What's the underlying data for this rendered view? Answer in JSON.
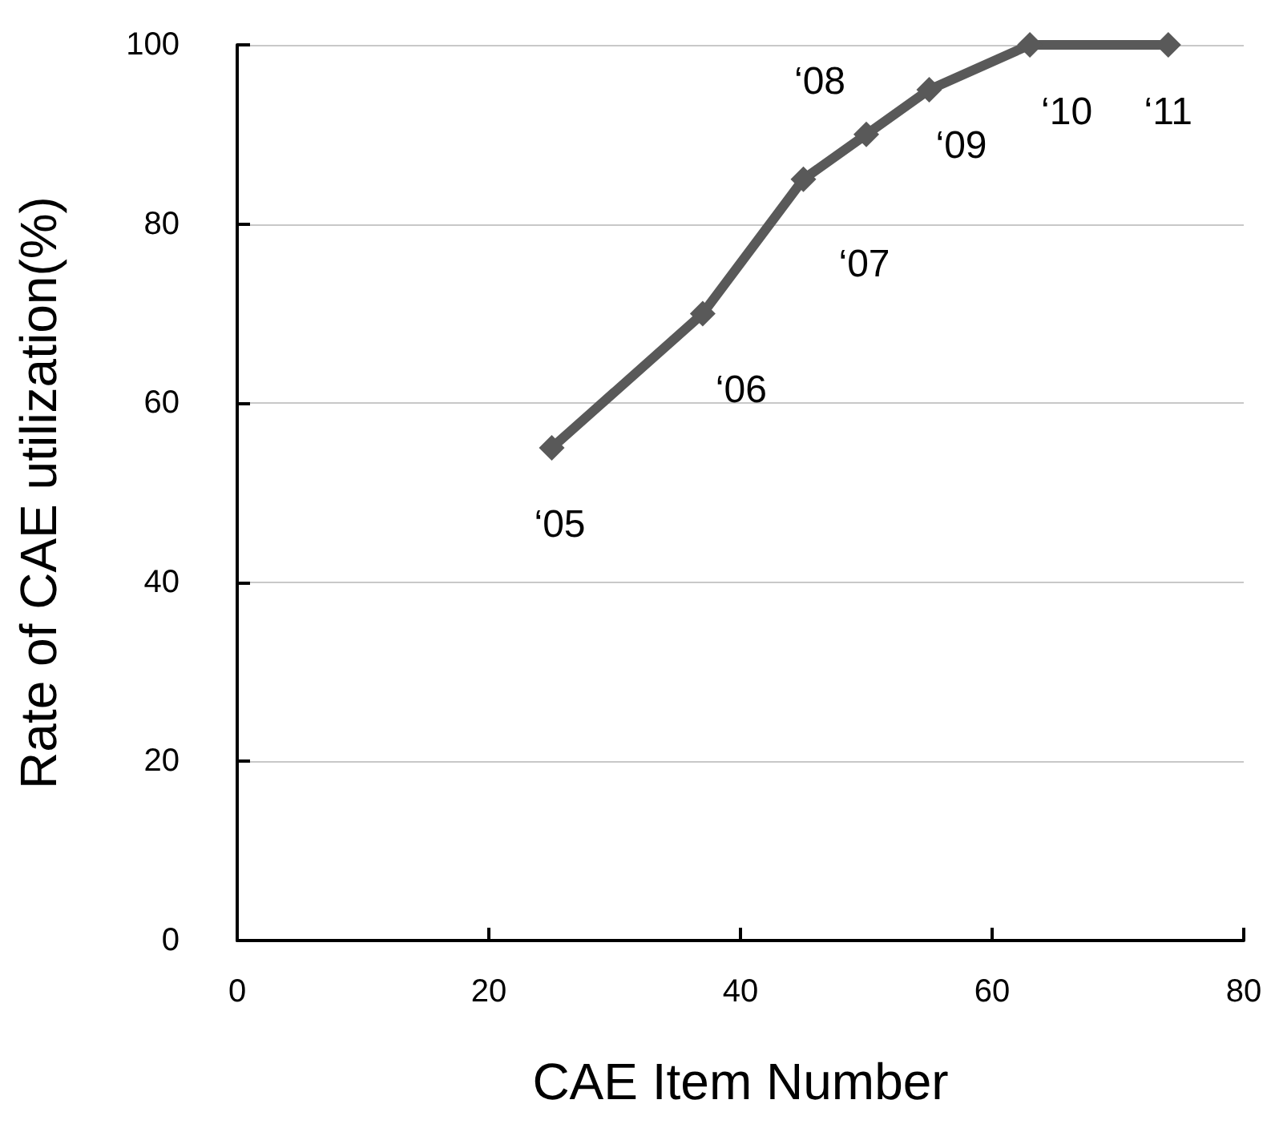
{
  "chart_data": {
    "type": "line",
    "xlabel": "CAE Item Number",
    "ylabel": "Rate of CAE utilization(%)",
    "x": [
      25,
      37,
      45,
      50,
      55,
      63,
      74
    ],
    "series": [
      {
        "color": "#595959",
        "values": [
          55,
          70,
          85,
          90,
          95,
          100,
          100
        ]
      }
    ],
    "xlim": [
      0,
      80
    ],
    "xticks": [
      0,
      20,
      40,
      60,
      80
    ],
    "ylim": [
      0,
      100
    ],
    "yticks": [
      0,
      20,
      40,
      60,
      80,
      100
    ],
    "grid": "y",
    "marker": "diamond",
    "line_style": "solid",
    "annotations": [
      {
        "text": "‘05",
        "x": 25,
        "y": 55
      },
      {
        "text": "‘06",
        "x": 37,
        "y": 70
      },
      {
        "text": "‘07",
        "x": 45,
        "y": 85
      },
      {
        "text": "‘08",
        "x": 50,
        "y": 90
      },
      {
        "text": "‘09",
        "x": 55,
        "y": 95
      },
      {
        "text": "‘10",
        "x": 63,
        "y": 100
      },
      {
        "text": "‘11",
        "x": 74,
        "y": 100
      }
    ]
  }
}
